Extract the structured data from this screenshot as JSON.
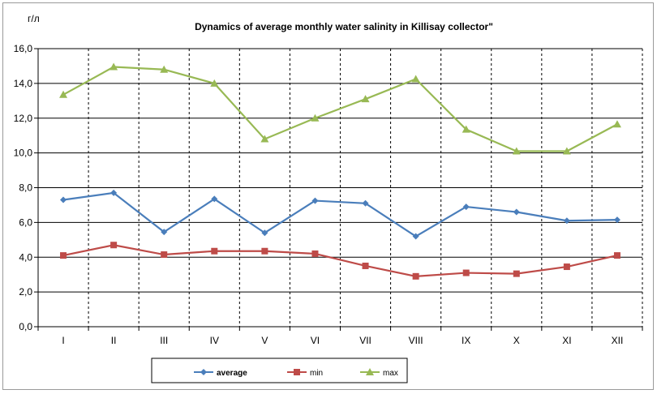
{
  "chart_data": {
    "type": "line",
    "title": "Dynamics of average monthly water salinity in Killisay collector\"",
    "ylabel": "г/л",
    "xlabel": "",
    "categories": [
      "I",
      "II",
      "III",
      "IV",
      "V",
      "VI",
      "VII",
      "VIII",
      "IX",
      "X",
      "XI",
      "XII"
    ],
    "ylim": [
      0,
      16
    ],
    "yticks": [
      "0,0",
      "2,0",
      "4,0",
      "6,0",
      "8,0",
      "10,0",
      "12,0",
      "14,0",
      "16,0"
    ],
    "grid": true,
    "legend_position": "bottom",
    "series": [
      {
        "name": "average",
        "color": "#4a7ebb",
        "marker": "diamond",
        "values": [
          7.3,
          7.7,
          5.45,
          7.35,
          5.4,
          7.25,
          7.1,
          5.2,
          6.9,
          6.6,
          6.1,
          6.15
        ]
      },
      {
        "name": "min",
        "color": "#be4b48",
        "marker": "square",
        "values": [
          4.1,
          4.7,
          4.15,
          4.35,
          4.35,
          4.2,
          3.5,
          2.9,
          3.1,
          3.05,
          3.45,
          4.1
        ]
      },
      {
        "name": "max",
        "color": "#98b954",
        "marker": "triangle",
        "values": [
          13.35,
          14.95,
          14.8,
          14.0,
          10.8,
          12.0,
          13.1,
          14.25,
          11.35,
          10.1,
          10.1,
          11.65
        ]
      }
    ]
  }
}
